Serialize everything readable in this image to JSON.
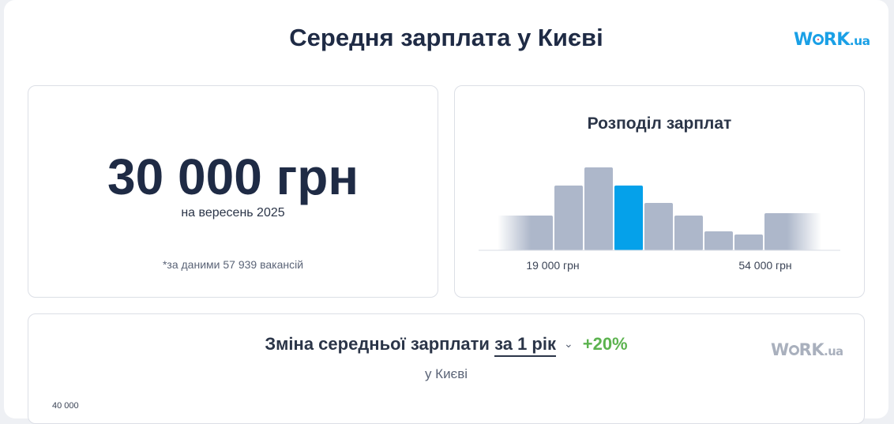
{
  "header": {
    "title": "Середня зарплата у Києві",
    "logo": "WORK.ua"
  },
  "summary": {
    "salary": "30 000 грн",
    "period": "на вересень 2025",
    "footnote": "*за даними 57 939 вакансій"
  },
  "distribution": {
    "title": "Розподіл зарплат",
    "axis_labels": [
      "19 000 грн",
      "54 000 грн"
    ]
  },
  "chart_data": {
    "type": "bar",
    "title": "Розподіл зарплат",
    "categories": [
      "b1",
      "b2",
      "b3",
      "b4",
      "b5",
      "b6",
      "b7",
      "b8",
      "b9"
    ],
    "values": [
      44,
      82,
      105,
      82,
      60,
      44,
      24,
      20,
      47
    ],
    "highlight_index": 3,
    "bar_color": "#adb7ca",
    "highlight_color": "#05a1ea",
    "x_tick_labels": [
      "19 000 грн",
      "54 000 грн"
    ]
  },
  "change": {
    "title": "Зміна середньої зарплати",
    "period_select": "за 1 рік",
    "percent": "+20%",
    "city": "у Києві",
    "logo": "WORK.ua",
    "y_tick": "40 000"
  },
  "colors": {
    "text": "#1f2b45",
    "brand_blue": "#1aa0e6",
    "positive": "#5cb34f",
    "bar": "#adb7ca",
    "bar_highlight": "#05a1ea"
  }
}
